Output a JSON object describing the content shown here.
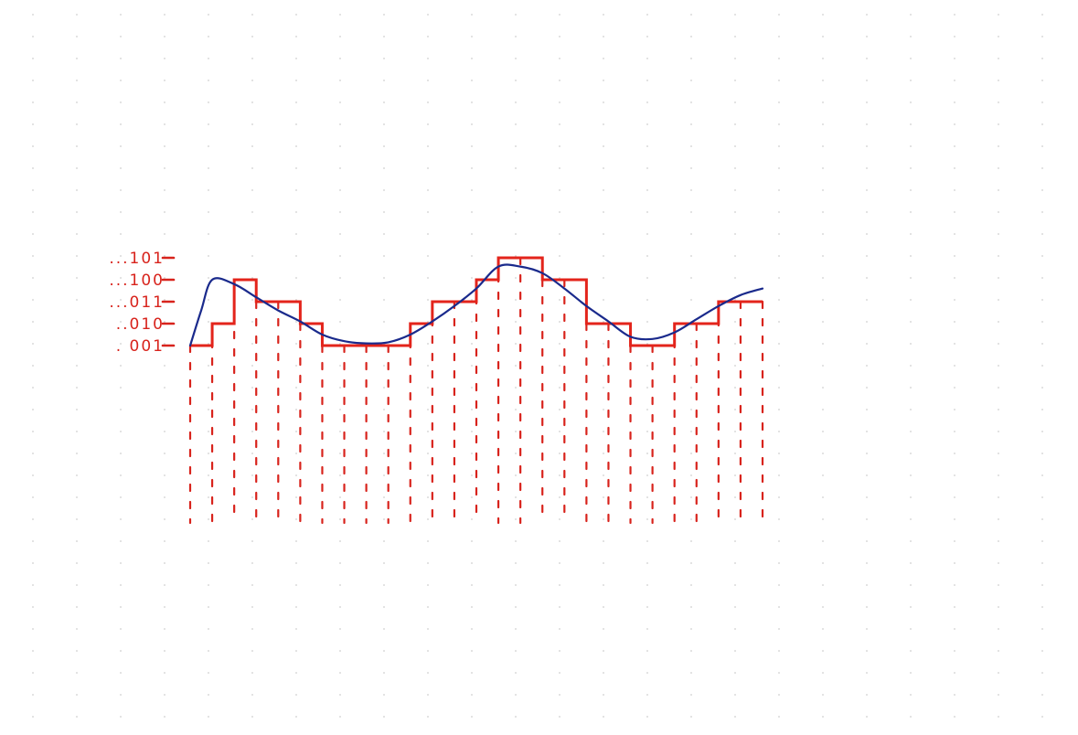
{
  "chart_data": {
    "type": "line",
    "title": "",
    "xlabel": "",
    "ylabel": "",
    "levels": [
      "...101",
      "...100",
      "...011",
      "..010",
      ". 001"
    ],
    "level_codes": [
      5,
      4,
      3,
      2,
      1
    ],
    "samples_count": 27,
    "quantized_levels": [
      1,
      2,
      4,
      3,
      3,
      2,
      1,
      1,
      1,
      1,
      2,
      3,
      3,
      4,
      5,
      5,
      4,
      4,
      2,
      2,
      1,
      1,
      2,
      2,
      3,
      3,
      3
    ],
    "analog_signal": [
      [
        0,
        1.0
      ],
      [
        0.5,
        2.6
      ],
      [
        1,
        4.0
      ],
      [
        2,
        3.8
      ],
      [
        3,
        3.2
      ],
      [
        4,
        2.6
      ],
      [
        5,
        2.1
      ],
      [
        6,
        1.5
      ],
      [
        7,
        1.2
      ],
      [
        8,
        1.1
      ],
      [
        9,
        1.15
      ],
      [
        10,
        1.5
      ],
      [
        11,
        2.1
      ],
      [
        12,
        2.8
      ],
      [
        13,
        3.6
      ],
      [
        14,
        4.6
      ],
      [
        15,
        4.6
      ],
      [
        16,
        4.3
      ],
      [
        17,
        3.6
      ],
      [
        18,
        2.8
      ],
      [
        19,
        2.1
      ],
      [
        20,
        1.4
      ],
      [
        21,
        1.3
      ],
      [
        22,
        1.6
      ],
      [
        23,
        2.2
      ],
      [
        24,
        2.8
      ],
      [
        25,
        3.3
      ],
      [
        26,
        3.6
      ]
    ],
    "colors": {
      "analog": "#1a2a8c",
      "quantized": "#e3241b",
      "sample_lines": "#d8231c",
      "labels": "#d8231c",
      "grid_dots": "#cfcfcf"
    }
  }
}
